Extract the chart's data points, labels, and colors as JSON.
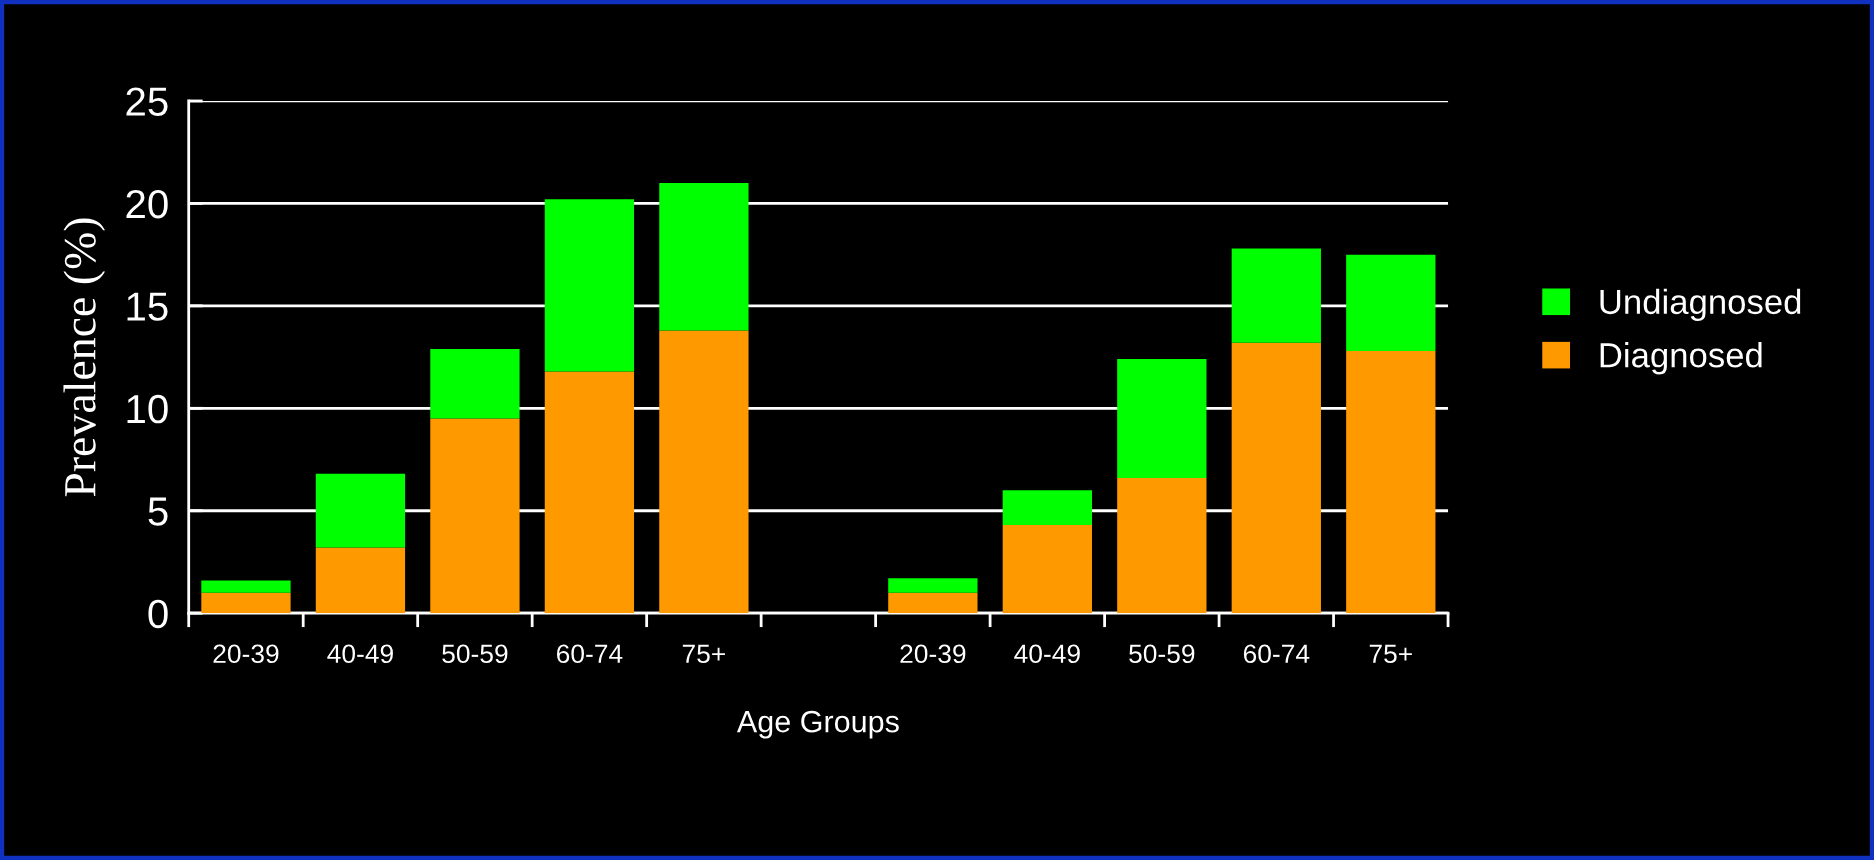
{
  "chart_data": {
    "type": "bar",
    "stacked": true,
    "ylabel": "Prevalence (%)",
    "xlabel": "Age Groups",
    "categories": [
      "20-39",
      "40-49",
      "50-59",
      "60-74",
      "75+",
      null,
      "20-39",
      "40-49",
      "50-59",
      "60-74",
      "75+"
    ],
    "series": [
      {
        "name": "Diagnosed",
        "color": "#ff9900",
        "values": [
          1.0,
          3.2,
          9.5,
          11.8,
          13.8,
          null,
          1.0,
          4.3,
          6.6,
          13.2,
          12.8
        ]
      },
      {
        "name": "Undiagnosed",
        "color": "#00ff00",
        "values": [
          0.6,
          3.6,
          3.4,
          8.4,
          7.2,
          null,
          0.7,
          1.7,
          5.8,
          4.6,
          4.7
        ]
      }
    ],
    "ylim": [
      0,
      25
    ],
    "yticks": [
      0,
      5,
      10,
      15,
      20,
      25
    ],
    "grid": "y",
    "legend": "right"
  }
}
